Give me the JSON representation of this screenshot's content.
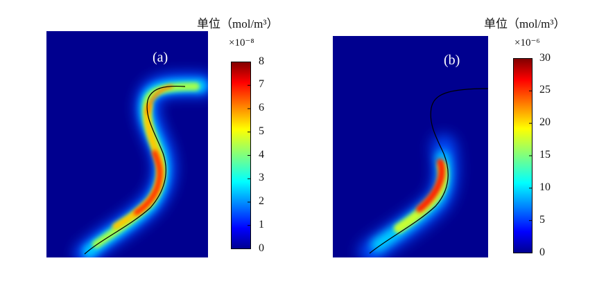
{
  "panels": [
    {
      "id": "a",
      "label": "(a)",
      "unit_label": "单位（mol/m³）",
      "multiplier": "×10⁻⁸",
      "colorbar_ticks": [
        "0",
        "1",
        "2",
        "3",
        "4",
        "5",
        "6",
        "7",
        "8"
      ],
      "colorbar_range": [
        0,
        8
      ]
    },
    {
      "id": "b",
      "label": "(b)",
      "unit_label": "单位（mol/m³）",
      "multiplier": "×10⁻⁶",
      "colorbar_ticks": [
        "0",
        "5",
        "10",
        "15",
        "20",
        "25",
        "30"
      ],
      "colorbar_range": [
        0,
        30
      ]
    }
  ],
  "colormap": "jet",
  "colors": {
    "background_field": "#00008f",
    "interface_line": "#000000"
  }
}
